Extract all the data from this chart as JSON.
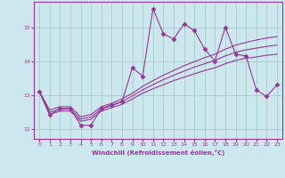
{
  "xlabel": "Windchill (Refroidissement éolien,°C)",
  "bg_color": "#cce8ee",
  "line_color": "#993399",
  "grid_color": "#99ccbb",
  "xlim": [
    -0.5,
    23.5
  ],
  "ylim": [
    11.7,
    15.75
  ],
  "yticks": [
    12,
    13,
    14,
    15
  ],
  "xticks": [
    0,
    1,
    2,
    3,
    4,
    5,
    6,
    7,
    8,
    9,
    10,
    11,
    12,
    13,
    14,
    15,
    16,
    17,
    18,
    19,
    20,
    21,
    22,
    23
  ],
  "main_series": [
    13.1,
    12.4,
    12.6,
    12.6,
    12.1,
    12.1,
    12.6,
    12.7,
    12.8,
    13.8,
    13.55,
    15.55,
    14.8,
    14.65,
    15.1,
    14.9,
    14.35,
    14.0,
    15.0,
    14.2,
    14.15,
    13.15,
    12.95,
    13.3
  ],
  "line_upper": [
    13.1,
    12.55,
    12.65,
    12.65,
    12.35,
    12.42,
    12.65,
    12.75,
    12.88,
    13.05,
    13.25,
    13.42,
    13.58,
    13.72,
    13.86,
    13.98,
    14.1,
    14.2,
    14.35,
    14.47,
    14.55,
    14.62,
    14.68,
    14.72
  ],
  "line_mid": [
    13.1,
    12.48,
    12.58,
    12.58,
    12.28,
    12.35,
    12.58,
    12.68,
    12.8,
    12.97,
    13.15,
    13.3,
    13.45,
    13.58,
    13.7,
    13.82,
    13.92,
    14.02,
    14.15,
    14.26,
    14.33,
    14.38,
    14.43,
    14.47
  ],
  "line_lower": [
    13.1,
    12.42,
    12.52,
    12.52,
    12.22,
    12.28,
    12.52,
    12.62,
    12.72,
    12.88,
    13.05,
    13.18,
    13.3,
    13.42,
    13.52,
    13.62,
    13.72,
    13.8,
    13.92,
    14.02,
    14.08,
    14.12,
    14.17,
    14.2
  ]
}
